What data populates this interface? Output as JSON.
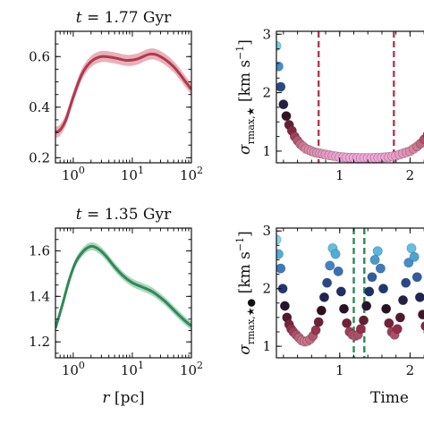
{
  "chart_data": [
    {
      "id": "top-left",
      "type": "line",
      "title": "t = 1.77 Gyr",
      "xscale": "log",
      "xlim": [
        0.5,
        100
      ],
      "ylim": [
        0.18,
        0.7
      ],
      "xticks": [
        {
          "v": 1,
          "base": "10",
          "exp": "0"
        },
        {
          "v": 10,
          "base": "10",
          "exp": "1"
        },
        {
          "v": 100,
          "base": "10",
          "exp": "2"
        }
      ],
      "yticks": [
        {
          "v": 0.2,
          "label": "0.2"
        },
        {
          "v": 0.4,
          "label": "0.4"
        },
        {
          "v": 0.6,
          "label": "0.6"
        }
      ],
      "color": "#b5364d",
      "band_color": "#e2a4ad",
      "series": [
        {
          "x": [
            0.5,
            0.6,
            0.75,
            1,
            1.4,
            2,
            3,
            5,
            8,
            12,
            20,
            30,
            50,
            80,
            100
          ],
          "y": [
            0.3,
            0.31,
            0.35,
            0.44,
            0.53,
            0.58,
            0.6,
            0.595,
            0.585,
            0.59,
            0.61,
            0.6,
            0.56,
            0.5,
            0.47
          ]
        }
      ],
      "band_halfwidth": 0.022
    },
    {
      "id": "top-right",
      "type": "scatter",
      "ylabel": "σ_{r_max,★} [km s⁻¹]",
      "xlim": [
        0.1,
        2.3
      ],
      "ylim": [
        0.8,
        3.05
      ],
      "xticks": [
        {
          "v": 1,
          "label": "1"
        },
        {
          "v": 2,
          "label": "2"
        }
      ],
      "yticks": [
        {
          "v": 1,
          "label": "1"
        },
        {
          "v": 2,
          "label": "2"
        },
        {
          "v": 3,
          "label": "3"
        }
      ],
      "vlines": [
        {
          "x": 0.7,
          "color": "#b23a4e"
        },
        {
          "x": 1.77,
          "color": "#b23a4e"
        }
      ],
      "points": {
        "x": [
          0.1,
          0.13,
          0.16,
          0.2,
          0.24,
          0.28,
          0.32,
          0.36,
          0.4,
          0.44,
          0.48,
          0.52,
          0.56,
          0.6,
          0.64,
          0.68,
          0.72,
          0.76,
          0.8,
          0.85,
          0.9,
          0.95,
          1.0,
          1.05,
          1.1,
          1.15,
          1.2,
          1.25,
          1.3,
          1.35,
          1.4,
          1.45,
          1.5,
          1.55,
          1.6,
          1.65,
          1.7,
          1.75,
          1.8,
          1.85,
          1.9,
          1.95,
          2.0,
          2.05,
          2.1,
          2.15,
          2.2,
          2.25,
          2.3
        ],
        "y": [
          2.8,
          2.45,
          2.1,
          1.8,
          1.6,
          1.45,
          1.35,
          1.25,
          1.18,
          1.12,
          1.08,
          1.04,
          1.02,
          1.0,
          0.98,
          0.97,
          0.96,
          0.95,
          0.94,
          0.93,
          0.92,
          0.91,
          0.9,
          0.895,
          0.89,
          0.888,
          0.886,
          0.884,
          0.883,
          0.882,
          0.882,
          0.883,
          0.884,
          0.886,
          0.89,
          0.895,
          0.9,
          0.91,
          0.92,
          0.94,
          0.96,
          0.98,
          1.0,
          1.04,
          1.08,
          1.13,
          1.2,
          1.28,
          1.35
        ]
      }
    },
    {
      "id": "bottom-left",
      "type": "line",
      "title": "t = 1.35 Gyr",
      "xscale": "log",
      "xlim": [
        0.5,
        100
      ],
      "ylim": [
        1.13,
        1.7
      ],
      "xticks": [
        {
          "v": 1,
          "base": "10",
          "exp": "0"
        },
        {
          "v": 10,
          "base": "10",
          "exp": "1"
        },
        {
          "v": 100,
          "base": "10",
          "exp": "2"
        }
      ],
      "yticks": [
        {
          "v": 1.2,
          "label": "1.2"
        },
        {
          "v": 1.4,
          "label": "1.4"
        },
        {
          "v": 1.6,
          "label": "1.6"
        }
      ],
      "xlabel": "r [pc]",
      "color": "#2e8a57",
      "band_color": "#9fd0b3",
      "series": [
        {
          "x": [
            0.5,
            0.65,
            0.85,
            1.1,
            1.5,
            2,
            2.6,
            3.5,
            5,
            7,
            10,
            15,
            22,
            35,
            55,
            80,
            100
          ],
          "y": [
            1.26,
            1.36,
            1.47,
            1.55,
            1.6,
            1.62,
            1.61,
            1.58,
            1.53,
            1.49,
            1.46,
            1.44,
            1.42,
            1.38,
            1.33,
            1.29,
            1.27
          ]
        }
      ],
      "band_halfwidth": 0.018
    },
    {
      "id": "bottom-right",
      "type": "scatter",
      "ylabel": "σ_{r_max,★●} [km s⁻¹]",
      "xlabel": "Time",
      "xlim": [
        0.1,
        2.3
      ],
      "ylim": [
        0.8,
        3.05
      ],
      "xticks": [
        {
          "v": 1,
          "label": "1"
        },
        {
          "v": 2,
          "label": "2"
        }
      ],
      "yticks": [
        {
          "v": 1,
          "label": "1"
        },
        {
          "v": 2,
          "label": "2"
        },
        {
          "v": 3,
          "label": "3"
        }
      ],
      "vlines": [
        {
          "x": 1.2,
          "color": "#2e8a57"
        },
        {
          "x": 1.35,
          "color": "#2e8a57"
        }
      ],
      "points": {
        "x": [
          0.1,
          0.13,
          0.16,
          0.19,
          0.22,
          0.25,
          0.28,
          0.31,
          0.34,
          0.38,
          0.42,
          0.46,
          0.5,
          0.54,
          0.58,
          0.62,
          0.66,
          0.7,
          0.74,
          0.78,
          0.82,
          0.86,
          0.9,
          0.94,
          0.98,
          1.02,
          1.06,
          1.1,
          1.14,
          1.18,
          1.22,
          1.26,
          1.3,
          1.34,
          1.38,
          1.42,
          1.46,
          1.5,
          1.54,
          1.58,
          1.62,
          1.66,
          1.7,
          1.74,
          1.78,
          1.82,
          1.86,
          1.9,
          1.94,
          1.98,
          2.02,
          2.06,
          2.1,
          2.14,
          2.18,
          2.22,
          2.26,
          2.3
        ],
        "y": [
          2.85,
          2.6,
          2.35,
          2.0,
          1.7,
          1.5,
          1.38,
          1.3,
          1.25,
          1.2,
          1.15,
          1.1,
          1.08,
          1.09,
          1.12,
          1.18,
          1.28,
          1.42,
          1.62,
          1.85,
          2.1,
          2.4,
          2.7,
          2.6,
          2.3,
          1.95,
          1.65,
          1.4,
          1.25,
          1.2,
          1.18,
          1.2,
          1.3,
          1.45,
          1.7,
          1.95,
          2.2,
          2.5,
          2.65,
          2.35,
          2.0,
          1.65,
          1.4,
          1.25,
          1.2,
          1.3,
          1.5,
          1.8,
          2.1,
          2.45,
          2.7,
          2.55,
          2.2,
          1.85,
          1.55,
          1.35,
          1.25,
          1.2
        ]
      }
    }
  ]
}
